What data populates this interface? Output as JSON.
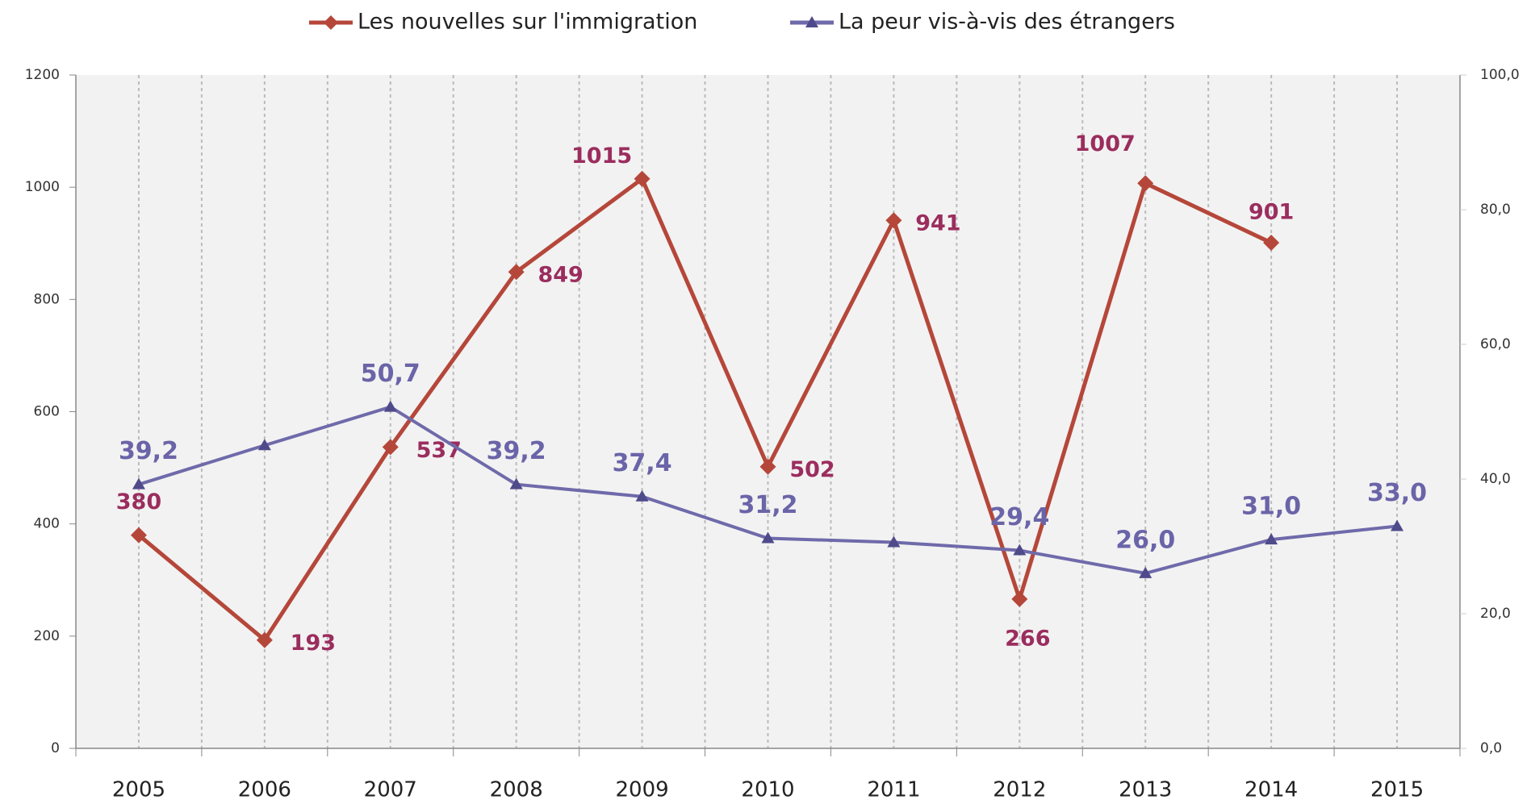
{
  "chart_data": {
    "type": "line",
    "categories": [
      "2005",
      "2006",
      "2007",
      "2008",
      "2009",
      "2010",
      "2011",
      "2012",
      "2013",
      "2014",
      "2015"
    ],
    "series": [
      {
        "name": "Les nouvelles sur l'immigration",
        "color": "#b5473a",
        "values": [
          380,
          193,
          537,
          849,
          1015,
          502,
          941,
          266,
          1007,
          901,
          null
        ]
      },
      {
        "name": "La peur vis-à-vis des étrangers",
        "color": "#6f6aaa",
        "axis": "y2",
        "values": [
          39.2,
          45.0,
          50.7,
          39.2,
          37.4,
          31.2,
          30.6,
          29.4,
          26.0,
          31.0,
          33.0
        ],
        "value_labels": [
          "39,2",
          null,
          "50,7",
          "39,2",
          "37,4",
          "31,2",
          null,
          "29,4",
          "26,0",
          "31,0",
          "33,0"
        ]
      }
    ],
    "ylim": [
      0,
      1200
    ],
    "yticks": [
      0,
      200,
      400,
      600,
      800,
      1000,
      1200
    ],
    "y2lim": [
      0,
      100
    ],
    "y2ticks": [
      {
        "value": 0,
        "label": "0,0"
      },
      {
        "value": 20,
        "label": "20,0"
      },
      {
        "value": 40,
        "label": "40,0"
      },
      {
        "value": 60,
        "label": "60,0"
      },
      {
        "value": 80,
        "label": "80,0"
      },
      {
        "value": 100,
        "label": "100,0"
      }
    ],
    "legend": "top"
  }
}
